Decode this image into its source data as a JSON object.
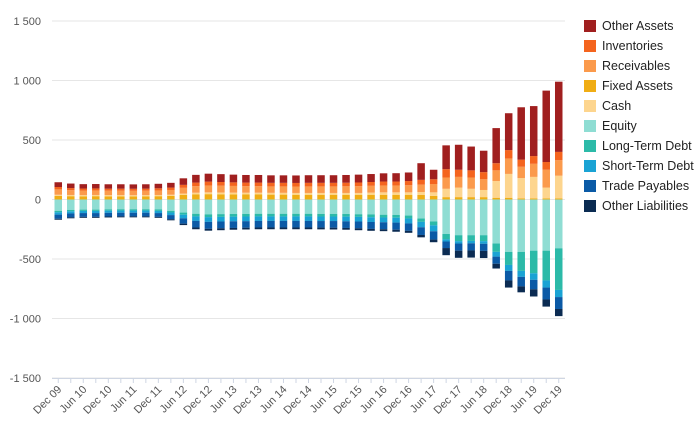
{
  "chart_data": {
    "type": "bar",
    "stacked": true,
    "categories": [
      "Dec 09",
      "Mar 10",
      "Jun 10",
      "Sep 10",
      "Dec 10",
      "Mar 11",
      "Jun 11",
      "Sep 11",
      "Dec 11",
      "Mar 12",
      "Jun 12",
      "Sep 12",
      "Dec 12",
      "Mar 13",
      "Jun 13",
      "Sep 13",
      "Dec 13",
      "Mar 14",
      "Jun 14",
      "Sep 14",
      "Dec 14",
      "Mar 15",
      "Jun 15",
      "Sep 15",
      "Dec 15",
      "Mar 16",
      "Jun 16",
      "Sep 16",
      "Dec 16",
      "Mar 17",
      "Jun 17",
      "Sep 17",
      "Dec 17",
      "Mar 18",
      "Jun 18",
      "Sep 18",
      "Dec 18",
      "Mar 19",
      "Jun 19",
      "Sep 19",
      "Dec 19"
    ],
    "x_tick_labels": [
      "Dec 09",
      "Jun 10",
      "Dec 10",
      "Jun 11",
      "Dec 11",
      "Jun 12",
      "Dec 12",
      "Jun 13",
      "Dec 13",
      "Jun 14",
      "Dec 14",
      "Jun 15",
      "Dec 15",
      "Jun 16",
      "Dec 16",
      "Jun 17",
      "Dec 17",
      "Jun 18",
      "Dec 18",
      "Jun 19",
      "Dec 19"
    ],
    "y_tick_labels": [
      "1 500",
      "1 000",
      "500",
      "0",
      "-500",
      "-1 000",
      "-1 500"
    ],
    "ylim": [
      -1500,
      1500
    ],
    "grid": true,
    "legend_position": "right",
    "series": [
      {
        "name": "Fixed Assets",
        "color": "#f0ad14",
        "values": [
          30,
          28,
          27,
          28,
          27,
          27,
          26,
          27,
          28,
          30,
          38,
          42,
          45,
          44,
          43,
          42,
          42,
          41,
          41,
          40,
          40,
          40,
          40,
          40,
          40,
          40,
          40,
          40,
          40,
          38,
          30,
          20,
          20,
          20,
          20,
          15,
          15,
          10,
          10,
          10,
          10
        ]
      },
      {
        "name": "Cash",
        "color": "#fdd58e",
        "values": [
          10,
          10,
          10,
          10,
          10,
          10,
          10,
          10,
          10,
          10,
          12,
          15,
          15,
          15,
          15,
          15,
          15,
          15,
          15,
          15,
          15,
          15,
          15,
          15,
          15,
          18,
          20,
          20,
          20,
          25,
          30,
          70,
          80,
          70,
          60,
          140,
          200,
          170,
          180,
          90,
          190
        ]
      },
      {
        "name": "Receivables",
        "color": "#fb9a4c",
        "values": [
          45,
          40,
          38,
          38,
          37,
          37,
          37,
          37,
          38,
          40,
          48,
          55,
          58,
          57,
          56,
          55,
          55,
          54,
          54,
          54,
          55,
          55,
          55,
          56,
          57,
          57,
          58,
          58,
          60,
          62,
          70,
          95,
          90,
          95,
          90,
          90,
          130,
          95,
          110,
          150,
          130
        ]
      },
      {
        "name": "Inventories",
        "color": "#f4641e",
        "values": [
          20,
          18,
          17,
          17,
          17,
          17,
          17,
          17,
          18,
          20,
          25,
          30,
          32,
          31,
          30,
          30,
          30,
          30,
          30,
          30,
          30,
          30,
          30,
          30,
          31,
          32,
          33,
          33,
          35,
          40,
          40,
          70,
          60,
          60,
          60,
          60,
          70,
          60,
          65,
          65,
          70
        ]
      },
      {
        "name": "Other Assets",
        "color": "#a01f1f",
        "values": [
          40,
          38,
          37,
          37,
          37,
          37,
          37,
          37,
          38,
          40,
          55,
          65,
          67,
          66,
          65,
          64,
          64,
          63,
          63,
          63,
          64,
          64,
          64,
          65,
          66,
          67,
          69,
          70,
          72,
          140,
          80,
          200,
          210,
          200,
          180,
          295,
          310,
          440,
          420,
          600,
          590
        ]
      },
      {
        "name": "Equity",
        "color": "#8fddd3",
        "values": [
          -95,
          -88,
          -85,
          -85,
          -83,
          -82,
          -82,
          -82,
          -84,
          -95,
          -110,
          -120,
          -125,
          -123,
          -122,
          -121,
          -120,
          -120,
          -120,
          -120,
          -120,
          -121,
          -121,
          -122,
          -124,
          -126,
          -128,
          -130,
          -135,
          -160,
          -185,
          -290,
          -300,
          -300,
          -300,
          -370,
          -440,
          -440,
          -430,
          -430,
          -410
        ]
      },
      {
        "name": "Long-Term Debt",
        "color": "#2cbaa8",
        "values": [
          -12,
          -11,
          -11,
          -11,
          -11,
          -11,
          -11,
          -11,
          -12,
          -14,
          -18,
          -22,
          -23,
          -23,
          -22,
          -22,
          -22,
          -22,
          -22,
          -22,
          -22,
          -22,
          -22,
          -22,
          -22,
          -23,
          -23,
          -23,
          -24,
          -28,
          -32,
          -45,
          -50,
          -48,
          -50,
          -70,
          -110,
          -160,
          -190,
          -250,
          -350
        ]
      },
      {
        "name": "Short-Term Debt",
        "color": "#1aa3d4",
        "values": [
          -20,
          -18,
          -18,
          -18,
          -18,
          -18,
          -18,
          -18,
          -18,
          -22,
          -30,
          -38,
          -40,
          -39,
          -39,
          -39,
          -38,
          -38,
          -38,
          -38,
          -38,
          -38,
          -38,
          -39,
          -39,
          -40,
          -40,
          -41,
          -42,
          -45,
          -50,
          -18,
          -20,
          -20,
          -22,
          -40,
          -50,
          -50,
          -55,
          -60,
          -60
        ]
      },
      {
        "name": "Trade Payables",
        "color": "#0b5aa6",
        "values": [
          -35,
          -33,
          -32,
          -32,
          -31,
          -31,
          -31,
          -31,
          -32,
          -35,
          -45,
          -55,
          -58,
          -57,
          -56,
          -55,
          -55,
          -55,
          -55,
          -55,
          -55,
          -55,
          -56,
          -56,
          -57,
          -58,
          -59,
          -60,
          -62,
          -65,
          -70,
          -55,
          -60,
          -60,
          -60,
          -60,
          -80,
          -80,
          -80,
          -100,
          -100
        ]
      },
      {
        "name": "Other Liabilities",
        "color": "#0b2b52",
        "values": [
          -8,
          -8,
          -8,
          -8,
          -8,
          -8,
          -8,
          -8,
          -8,
          -9,
          -12,
          -15,
          -16,
          -16,
          -15,
          -15,
          -15,
          -15,
          -15,
          -15,
          -15,
          -15,
          -15,
          -15,
          -16,
          -16,
          -16,
          -17,
          -17,
          -20,
          -22,
          -60,
          -60,
          -60,
          -60,
          -40,
          -60,
          -50,
          -60,
          -60,
          -60
        ]
      }
    ],
    "legend_order": [
      "Other Assets",
      "Inventories",
      "Receivables",
      "Fixed Assets",
      "Cash",
      "Equity",
      "Long-Term Debt",
      "Short-Term Debt",
      "Trade Payables",
      "Other Liabilities"
    ]
  }
}
